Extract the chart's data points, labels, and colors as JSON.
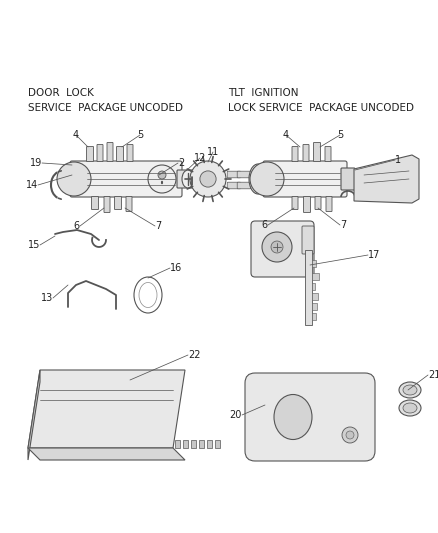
{
  "bg_color": "#ffffff",
  "fig_width": 4.38,
  "fig_height": 5.33,
  "dpi": 100,
  "line_color": "#555555",
  "text_color": "#222222",
  "title_dl_1": "DOOR  LOCK",
  "title_dl_2": "SERVICE  PACKAGE UNCODED",
  "title_tlt_1": "TLT  IGNITION",
  "title_tlt_2": "LOCK SERVICE  PACKAGE UNCODED",
  "font_size_title": 7.5,
  "font_size_label": 7.0
}
